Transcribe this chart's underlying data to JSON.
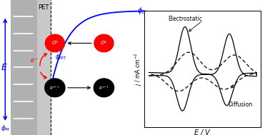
{
  "fig_width": 3.71,
  "fig_height": 1.89,
  "dpi": 100,
  "bg_color": "#d8eef8",
  "metal_gray": "#aaaaaa",
  "metal_dark": "#888888",
  "pet_gray": "#c0c0c0",
  "white": "#ffffff",
  "phi_L_label": "$\\phi_L$",
  "phi_M_label": "$\\phi_M$",
  "phi_PET_label": "$\\phi_{PET}$",
  "E_label": "$E$",
  "PET_label": "PET",
  "j_label": "$j$ / mA cm$^{-2}$",
  "E_axis_label": "$E$ / V",
  "electrostatic_label": "Electrostatic",
  "diffusion_label": "Diffusion",
  "Oz_label": "$O^z$",
  "Rz_label": "$R^{z-1}$",
  "e_label": "$e^-$"
}
